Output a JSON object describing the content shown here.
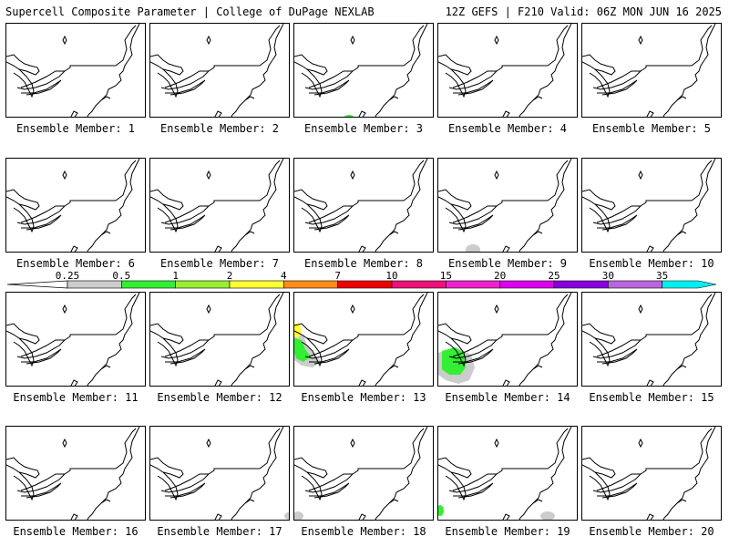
{
  "header": {
    "title_left": "Supercell Composite Parameter | College of DuPage NEXLAB",
    "title_right": "12Z GEFS | F210 Valid: 06Z MON JUN 16 2025"
  },
  "members": [
    {
      "label": "Ensemble Member: 1",
      "overlays": []
    },
    {
      "label": "Ensemble Member: 2",
      "overlays": []
    },
    {
      "label": "Ensemble Member: 3",
      "overlays": [
        {
          "level": "0.5-1",
          "color": "#33ee33"
        }
      ]
    },
    {
      "label": "Ensemble Member: 4",
      "overlays": []
    },
    {
      "label": "Ensemble Member: 5",
      "overlays": []
    },
    {
      "label": "Ensemble Member: 6",
      "overlays": []
    },
    {
      "label": "Ensemble Member: 7",
      "overlays": []
    },
    {
      "label": "Ensemble Member: 8",
      "overlays": []
    },
    {
      "label": "Ensemble Member: 9",
      "overlays": [
        {
          "level": "0.25-0.5",
          "color": "#cccccc"
        }
      ]
    },
    {
      "label": "Ensemble Member: 10",
      "overlays": []
    },
    {
      "label": "Ensemble Member: 11",
      "overlays": []
    },
    {
      "label": "Ensemble Member: 12",
      "overlays": []
    },
    {
      "label": "Ensemble Member: 13",
      "overlays": [
        {
          "level": "0.25-0.5",
          "color": "#cccccc"
        },
        {
          "level": "0.5-1",
          "color": "#33ee33"
        },
        {
          "level": "2-4",
          "color": "#ffff33"
        }
      ]
    },
    {
      "label": "Ensemble Member: 14",
      "overlays": [
        {
          "level": "0.25-0.5",
          "color": "#cccccc"
        },
        {
          "level": "0.5-1",
          "color": "#33ee33"
        }
      ]
    },
    {
      "label": "Ensemble Member: 15",
      "overlays": []
    },
    {
      "label": "Ensemble Member: 16",
      "overlays": []
    },
    {
      "label": "Ensemble Member: 17",
      "overlays": [
        {
          "level": "0.25-0.5",
          "color": "#cccccc"
        }
      ]
    },
    {
      "label": "Ensemble Member: 18",
      "overlays": [
        {
          "level": "0.25-0.5",
          "color": "#cccccc"
        }
      ]
    },
    {
      "label": "Ensemble Member: 19",
      "overlays": [
        {
          "level": "0.5-1",
          "color": "#33ee33"
        },
        {
          "level": "0.25-0.5",
          "color": "#cccccc"
        }
      ]
    },
    {
      "label": "Ensemble Member: 20",
      "overlays": []
    }
  ],
  "colorbar": {
    "labels": [
      "0.25",
      "0.5",
      "1",
      "2",
      "4",
      "7",
      "10",
      "15",
      "20",
      "25",
      "30",
      "35"
    ],
    "colors": [
      "#cccccc",
      "#33ee33",
      "#99ee33",
      "#ffff33",
      "#ff8c1a",
      "#ee0000",
      "#ee1177",
      "#ee22cc",
      "#dd00ee",
      "#8800dd",
      "#bb66dd",
      "#00eeee"
    ]
  }
}
